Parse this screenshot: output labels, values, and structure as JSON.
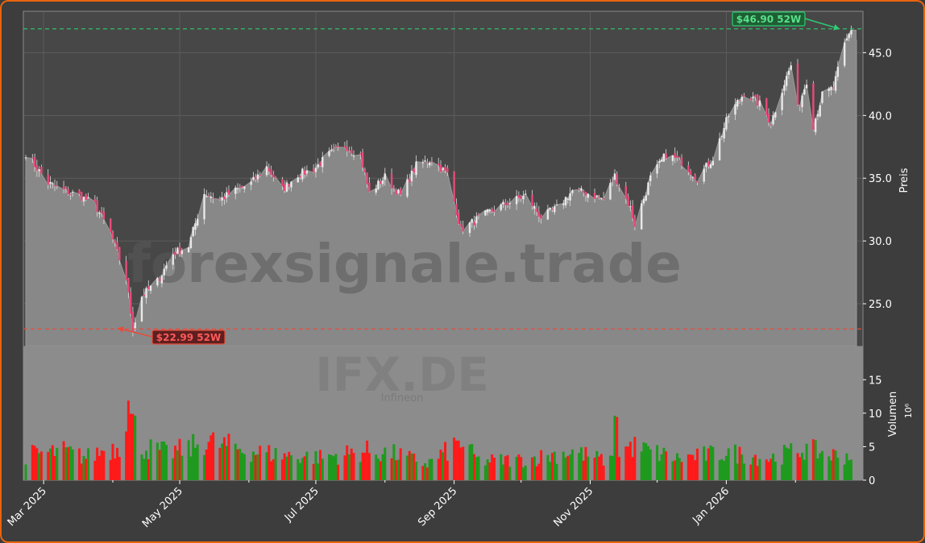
{
  "chart_data": [
    {
      "type": "candlestick",
      "ylabel": "Preis",
      "ylim": [
        21.6,
        48.3
      ],
      "yticks": [
        "25.0",
        "30.0",
        "35.0",
        "40.0",
        "45.0"
      ],
      "watermark": "forexsignale.trade",
      "annotations": [
        {
          "label": "$46.90 52W",
          "value": 46.9,
          "kind": "52w-high",
          "color": "#27ae60"
        },
        {
          "label": "$22.99 52W",
          "value": 22.99,
          "kind": "52w-low",
          "color": "#c0392b"
        }
      ],
      "close_keypoints": [
        [
          "2025-02-21",
          37.0
        ],
        [
          "2025-03-03",
          34.6
        ],
        [
          "2025-03-10",
          34.0
        ],
        [
          "2025-03-17",
          33.6
        ],
        [
          "2025-03-24",
          32.9
        ],
        [
          "2025-03-31",
          30.6
        ],
        [
          "2025-04-07",
          27.0
        ],
        [
          "2025-04-10",
          23.0
        ],
        [
          "2025-04-14",
          25.6
        ],
        [
          "2025-04-21",
          26.8
        ],
        [
          "2025-04-28",
          29.0
        ],
        [
          "2025-05-05",
          29.6
        ],
        [
          "2025-05-12",
          33.8
        ],
        [
          "2025-05-19",
          33.3
        ],
        [
          "2025-05-26",
          34.0
        ],
        [
          "2025-06-02",
          34.6
        ],
        [
          "2025-06-09",
          35.9
        ],
        [
          "2025-06-16",
          34.1
        ],
        [
          "2025-06-23",
          35.3
        ],
        [
          "2025-06-30",
          35.7
        ],
        [
          "2025-07-07",
          36.9
        ],
        [
          "2025-07-14",
          37.6
        ],
        [
          "2025-07-21",
          36.8
        ],
        [
          "2025-07-25",
          33.8
        ],
        [
          "2025-08-01",
          35.1
        ],
        [
          "2025-08-08",
          33.6
        ],
        [
          "2025-08-15",
          36.0
        ],
        [
          "2025-08-22",
          36.5
        ],
        [
          "2025-08-29",
          35.3
        ],
        [
          "2025-09-04",
          30.9
        ],
        [
          "2025-09-12",
          31.8
        ],
        [
          "2025-09-19",
          32.5
        ],
        [
          "2025-09-26",
          33.1
        ],
        [
          "2025-10-03",
          33.6
        ],
        [
          "2025-10-10",
          31.9
        ],
        [
          "2025-10-17",
          32.6
        ],
        [
          "2025-10-24",
          34.0
        ],
        [
          "2025-10-31",
          33.8
        ],
        [
          "2025-11-07",
          33.3
        ],
        [
          "2025-11-12",
          35.2
        ],
        [
          "2025-11-19",
          32.6
        ],
        [
          "2025-11-21",
          31.3
        ],
        [
          "2025-11-28",
          35.0
        ],
        [
          "2025-12-05",
          36.9
        ],
        [
          "2025-12-12",
          36.3
        ],
        [
          "2025-12-19",
          35.0
        ],
        [
          "2025-12-26",
          36.6
        ],
        [
          "2026-01-02",
          40.0
        ],
        [
          "2026-01-09",
          41.8
        ],
        [
          "2026-01-16",
          40.9
        ],
        [
          "2026-01-21",
          39.4
        ],
        [
          "2026-01-26",
          42.1
        ],
        [
          "2026-01-30",
          44.0
        ],
        [
          "2026-02-02",
          40.5
        ],
        [
          "2026-02-06",
          42.8
        ],
        [
          "2026-02-09",
          39.2
        ],
        [
          "2026-02-13",
          41.6
        ],
        [
          "2026-02-18",
          42.2
        ],
        [
          "2026-02-23",
          45.6
        ],
        [
          "2026-02-26",
          46.9
        ]
      ]
    },
    {
      "type": "bar",
      "ylabel": "Volumen",
      "yunit": "10⁶",
      "ylim": [
        0,
        19
      ],
      "yticks": [
        "0",
        "5",
        "10",
        "15"
      ],
      "watermark_title": "IFX.DE",
      "watermark_subtitle": "Infineon",
      "colors": {
        "up": "#1e9a1e",
        "down": "#ff1a1a"
      },
      "volume_keypoints": [
        [
          "2025-02-21",
          4.2
        ],
        [
          "2025-03-10",
          4.8
        ],
        [
          "2025-03-20",
          3.8
        ],
        [
          "2025-03-28",
          5.0
        ],
        [
          "2025-04-04",
          5.6
        ],
        [
          "2025-04-07",
          12.5
        ],
        [
          "2025-04-08",
          17.5
        ],
        [
          "2025-04-09",
          10.5
        ],
        [
          "2025-04-14",
          5.5
        ],
        [
          "2025-04-25",
          4.6
        ],
        [
          "2025-05-05",
          5.2
        ],
        [
          "2025-05-12",
          6.5
        ],
        [
          "2025-06-02",
          4.8
        ],
        [
          "2025-06-16",
          4.2
        ],
        [
          "2025-07-03",
          3.8
        ],
        [
          "2025-07-24",
          4.8
        ],
        [
          "2025-08-06",
          4.3
        ],
        [
          "2025-08-20",
          2.7
        ],
        [
          "2025-09-04",
          6.3
        ],
        [
          "2025-09-12",
          3.2
        ],
        [
          "2025-10-03",
          3.4
        ],
        [
          "2025-10-24",
          4.8
        ],
        [
          "2025-11-10",
          3.0
        ],
        [
          "2025-11-13",
          11.5
        ],
        [
          "2025-11-14",
          5.0
        ],
        [
          "2025-11-20",
          5.6
        ],
        [
          "2025-12-10",
          3.6
        ],
        [
          "2026-01-02",
          4.6
        ],
        [
          "2026-01-20",
          3.6
        ],
        [
          "2026-02-05",
          5.2
        ],
        [
          "2026-02-20",
          4.0
        ],
        [
          "2026-02-26",
          4.2
        ]
      ]
    }
  ],
  "x_axis": {
    "ticks": [
      "Mar 2025",
      "May 2025",
      "Jul 2025",
      "Sep 2025",
      "Nov 2025",
      "Jan 2026"
    ],
    "tick_dates": [
      "2025-03-01",
      "2025-05-01",
      "2025-07-01",
      "2025-09-01",
      "2025-11-01",
      "2026-01-01"
    ],
    "start": "2025-02-21",
    "end": "2026-02-28"
  }
}
